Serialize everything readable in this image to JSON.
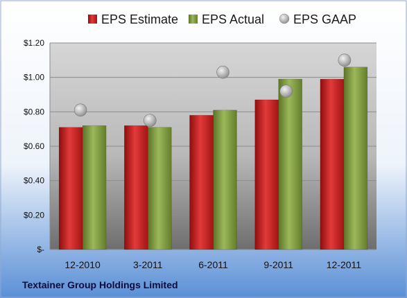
{
  "chart_data": {
    "type": "bar",
    "title": "",
    "xlabel": "",
    "ylabel": "",
    "categories": [
      "12-2010",
      "3-2011",
      "6-2011",
      "9-2011",
      "12-2011"
    ],
    "series": [
      {
        "name": "EPS Estimate",
        "kind": "bar",
        "color": "#cc1f1f",
        "values": [
          0.71,
          0.72,
          0.78,
          0.87,
          0.99
        ]
      },
      {
        "name": "EPS Actual",
        "kind": "bar",
        "color": "#7f9a3c",
        "values": [
          0.72,
          0.71,
          0.81,
          0.99,
          1.06
        ]
      },
      {
        "name": "EPS GAAP",
        "kind": "marker",
        "color": "#b3b3b3",
        "values": [
          0.81,
          0.75,
          1.03,
          0.92,
          1.1
        ]
      }
    ],
    "ylim": [
      0,
      1.2
    ],
    "yticks": [
      0,
      0.2,
      0.4,
      0.6,
      0.8,
      1.0,
      1.2
    ],
    "ytick_labels": [
      "$-",
      "$0.20",
      "$0.40",
      "$0.60",
      "$0.80",
      "$1.00",
      "$1.20"
    ],
    "grid": true,
    "legend_position": "top",
    "footer": "Textainer Group Holdings Limited"
  }
}
